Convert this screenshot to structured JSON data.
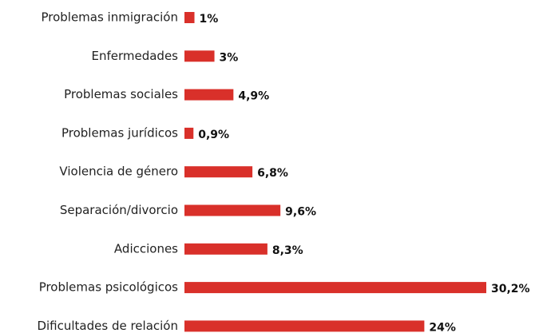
{
  "chart_data": {
    "type": "bar",
    "orientation": "horizontal",
    "color": "#d9302a",
    "categories": [
      "Problemas inmigración",
      "Enfermedades",
      "Problemas sociales",
      "Problemas jurídicos",
      "Violencia de género",
      "Separación/divorcio",
      "Adicciones",
      "Problemas psicológicos",
      "Dificultades de relación"
    ],
    "values": [
      1,
      3,
      4.9,
      0.9,
      6.8,
      9.6,
      8.3,
      30.2,
      24
    ],
    "value_labels": [
      "1%",
      "3%",
      "4,9%",
      "0,9%",
      "6,8%",
      "9,6%",
      "8,3%",
      "30,2%",
      "24%"
    ]
  }
}
